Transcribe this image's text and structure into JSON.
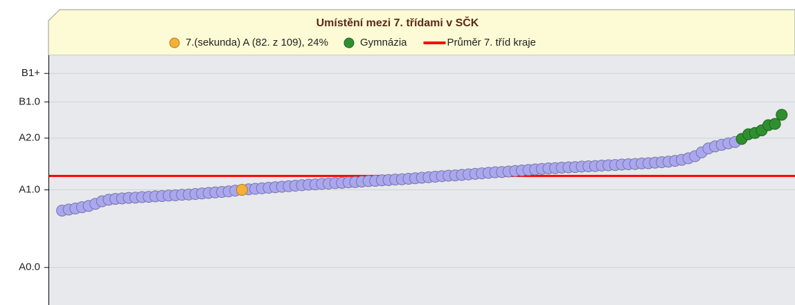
{
  "chart_data": {
    "type": "scatter",
    "title": "Umístění mezi 7. třídami v SČK",
    "xlim": [
      0,
      111
    ],
    "ylim": [
      -14.5,
      82
    ],
    "yticks": [
      {
        "value": 0,
        "label": "A0.0"
      },
      {
        "value": 30,
        "label": "A1.0"
      },
      {
        "value": 50,
        "label": "A2.0"
      },
      {
        "value": 64,
        "label": "B1.0"
      },
      {
        "value": 75,
        "label": "B1+"
      }
    ],
    "grid": true,
    "series": [
      {
        "color": "#aaa7ef",
        "x": [
          1,
          2,
          3,
          4,
          5,
          6,
          7,
          8,
          9,
          10,
          11,
          12,
          13,
          14,
          15,
          16,
          17,
          18,
          19,
          20,
          21,
          22,
          23,
          24,
          25,
          26,
          27,
          29,
          30,
          31,
          32,
          33,
          34,
          35,
          36,
          37,
          38,
          39,
          40,
          41,
          42,
          43,
          44,
          45,
          46,
          47,
          48,
          49,
          50,
          51,
          52,
          53,
          54,
          55,
          56,
          57,
          58,
          59,
          60,
          61,
          62,
          63,
          64,
          65,
          66,
          67,
          68,
          69,
          70,
          71,
          72,
          73,
          74,
          75,
          76,
          77,
          78,
          79,
          80,
          81,
          82,
          83,
          84,
          85,
          86,
          87,
          88,
          89,
          90,
          91,
          92,
          93,
          94,
          95,
          96,
          97,
          98,
          99,
          100,
          101,
          102
        ],
        "values": [
          22.0,
          22.4,
          22.8,
          23.3,
          23.8,
          24.6,
          25.6,
          26.2,
          26.5,
          26.7,
          26.9,
          27.0,
          27.2,
          27.3,
          27.5,
          27.6,
          27.8,
          27.9,
          28.1,
          28.2,
          28.4,
          28.6,
          28.8,
          29.0,
          29.2,
          29.4,
          29.7,
          30.2,
          30.4,
          30.6,
          30.8,
          31.0,
          31.2,
          31.4,
          31.6,
          31.8,
          32.0,
          32.1,
          32.3,
          32.4,
          32.6,
          32.7,
          32.9,
          33.0,
          33.2,
          33.4,
          33.5,
          33.7,
          33.8,
          34.0,
          34.1,
          34.3,
          34.5,
          34.7,
          34.9,
          35.1,
          35.3,
          35.5,
          35.6,
          35.8,
          36.0,
          36.2,
          36.4,
          36.6,
          36.8,
          36.9,
          37.1,
          37.3,
          37.5,
          37.7,
          37.9,
          38.1,
          38.3,
          38.4,
          38.6,
          38.7,
          38.8,
          39.0,
          39.1,
          39.2,
          39.4,
          39.5,
          39.6,
          39.8,
          39.9,
          40.0,
          40.2,
          40.3,
          40.5,
          40.7,
          40.9,
          41.2,
          41.6,
          42.2,
          43.0,
          44.5,
          46.0,
          46.8,
          47.4,
          48.0,
          48.5
        ]
      },
      {
        "name": "7.(sekunda) A (82. z 109), 24%",
        "color": "#f5b035",
        "x": [
          28
        ],
        "values": [
          30
        ]
      },
      {
        "name": "Gymnázia",
        "color": "#2f8f2f",
        "x": [
          103,
          104,
          105,
          106,
          107,
          108,
          109
        ],
        "values": [
          49.7,
          51.5,
          52.0,
          53.0,
          55.0,
          55.5,
          59.0
        ]
      }
    ],
    "reference_line": {
      "name": "Průměr 7. tříd kraje",
      "value": 35.4,
      "color": "#ff0000"
    }
  }
}
